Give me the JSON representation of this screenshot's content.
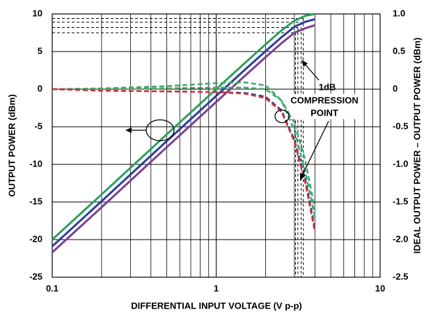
{
  "chart_data": {
    "type": "line",
    "xlabel": "DIFFERENTIAL INPUT VOLTAGE (V p-p)",
    "ylabel": "OUTPUT POWER (dBm)",
    "y2label": "IDEAL OUTPUT POWER – OUTPUT POWER (dBm)",
    "annotations": [
      "1dB",
      "COMPRESSION",
      "POINT"
    ],
    "xscale": "log",
    "grid": true,
    "xlim": [
      0.1,
      10
    ],
    "xticks": [
      0.1,
      1,
      10
    ],
    "xminorticks": [
      0.2,
      0.3,
      0.4,
      0.5,
      0.6,
      0.7,
      0.8,
      0.9,
      2,
      3,
      4,
      5,
      6,
      7,
      8,
      9
    ],
    "ylim": [
      -25,
      10
    ],
    "yticks": [
      10,
      5,
      0,
      -5,
      -10,
      -15,
      -20,
      -25
    ],
    "y2lim": [
      -2.5,
      1
    ],
    "y2ticks": [
      {
        "value": 1,
        "label": "1.0"
      },
      0.5,
      0,
      -0.5,
      {
        "value": -1,
        "label": "-1.0"
      },
      -1.5,
      {
        "value": -2,
        "label": "-2.0"
      },
      -2.5
    ],
    "x": [
      0.1,
      0.2,
      0.5,
      1,
      1.5,
      2,
      2.5,
      3,
      3.5,
      4
    ],
    "series": [
      {
        "color": "#2e9e5b",
        "axis": "y",
        "dash": false,
        "values": [
          -20,
          -14,
          -6,
          0,
          3.5,
          5.95,
          7.8,
          9.1,
          9.75,
          10
        ]
      },
      {
        "color": "#2a3f9a",
        "axis": "y",
        "dash": false,
        "values": [
          -20.9,
          -14.9,
          -6.9,
          -0.9,
          2.6,
          5.05,
          6.9,
          8.3,
          8.95,
          9.3
        ]
      },
      {
        "color": "#7b3f95",
        "axis": "y",
        "dash": false,
        "values": [
          -21.7,
          -15.7,
          -7.7,
          -1.7,
          1.8,
          4.25,
          6.1,
          7.5,
          8.1,
          8.5
        ]
      },
      {
        "color": "#3aa86a",
        "axis": "y2",
        "dash": true,
        "values": [
          0,
          0.01,
          0.04,
          0.08,
          0.09,
          0.05,
          -0.15,
          -0.55,
          -1.1,
          -1.7
        ]
      },
      {
        "color": "#3aa86a",
        "axis": "y2",
        "dash": true,
        "values": [
          0,
          0,
          0.01,
          0.02,
          0.02,
          0,
          -0.15,
          -0.45,
          -0.95,
          -1.6
        ]
      },
      {
        "color": "#2a3f9a",
        "axis": "y2",
        "dash": true,
        "values": [
          0,
          -0.02,
          -0.03,
          -0.04,
          -0.05,
          -0.1,
          -0.28,
          -0.68,
          -1.2,
          -1.85
        ]
      },
      {
        "color": "#e03030",
        "axis": "y2",
        "dash": true,
        "values": [
          0,
          -0.02,
          -0.03,
          -0.04,
          -0.06,
          -0.12,
          -0.3,
          -0.7,
          -1.25,
          -1.9
        ]
      }
    ],
    "compression_points": [
      {
        "x": 3.05,
        "y": 7.5
      },
      {
        "x": 3.15,
        "y": 8.2
      },
      {
        "x": 3.3,
        "y": 8.9
      },
      {
        "x": 3.4,
        "y": 9.4
      }
    ]
  }
}
